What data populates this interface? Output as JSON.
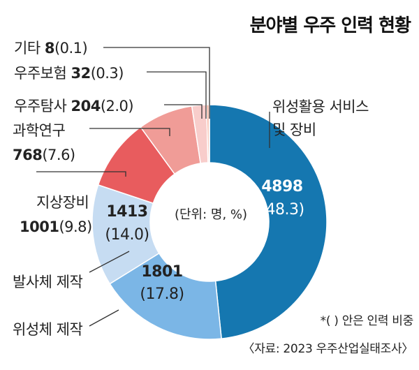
{
  "chart_data": {
    "type": "pie",
    "title": "분야별 우주 인력 현황",
    "unit_note": "(단위: 명, %)",
    "note": "*( ) 안은 인력 비중",
    "source": "〈자료: 2023 우주산업실태조사〉",
    "slices": [
      {
        "name": "위성활용 서비스 및 장비",
        "name_lines": [
          "위성활용 서비스",
          "및 장비"
        ],
        "value": 4898,
        "value_text": "4898",
        "pct": 48.3,
        "pct_text": "(48.3)",
        "color": "#1577b0"
      },
      {
        "name": "위성체 제작",
        "value": 1801,
        "value_text": "1801",
        "pct": 17.8,
        "pct_text": "(17.8)",
        "color": "#7bb6e6"
      },
      {
        "name": "발사체 제작",
        "value": 1413,
        "value_text": "1413",
        "pct": 14.0,
        "pct_text": "(14.0)",
        "color": "#c6dcf2"
      },
      {
        "name": "지상장비",
        "value": 1001,
        "value_text": "1001",
        "pct": 9.8,
        "pct_text": "(9.8)",
        "color": "#e85c5e"
      },
      {
        "name": "과학연구",
        "value": 768,
        "value_text": "768",
        "pct": 7.6,
        "pct_text": "(7.6)",
        "color": "#f09c97"
      },
      {
        "name": "우주탐사",
        "value": 204,
        "value_text": "204",
        "pct": 2.0,
        "pct_text": "(2.0)",
        "color": "#f8cdcb"
      },
      {
        "name": "우주보험",
        "value": 32,
        "value_text": "32",
        "pct": 0.3,
        "pct_text": "(0.3)",
        "color": "#f4a68f"
      },
      {
        "name": "기타",
        "value": 8,
        "value_text": "8",
        "pct": 0.1,
        "pct_text": "(0.1)",
        "color": "#e9a23d"
      }
    ]
  }
}
